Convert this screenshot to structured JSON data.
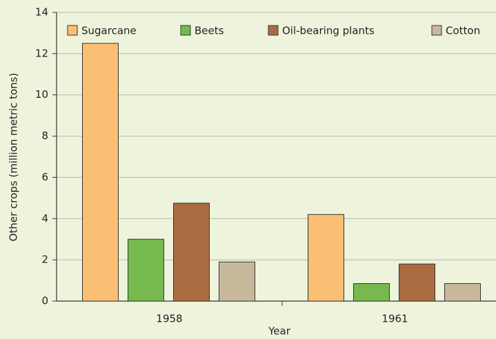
{
  "chart_data": {
    "type": "bar",
    "xlabel": "Year",
    "ylabel": "Other crops (million metric tons)",
    "categories": [
      "1958",
      "1961"
    ],
    "series": [
      {
        "name": "Sugarcane",
        "color": "#fbbf74",
        "values": [
          12.5,
          4.2
        ]
      },
      {
        "name": "Beets",
        "color": "#76b94f",
        "values": [
          3.0,
          0.85
        ]
      },
      {
        "name": "Oil-bearing plants",
        "color": "#a96c40",
        "values": [
          4.75,
          1.8
        ]
      },
      {
        "name": "Cotton",
        "color": "#c7b89c",
        "values": [
          1.9,
          0.85
        ]
      }
    ],
    "ylim": [
      0,
      14
    ],
    "yticks": [
      0,
      2,
      4,
      6,
      8,
      10,
      12,
      14
    ],
    "grid": true,
    "legend": "top"
  }
}
